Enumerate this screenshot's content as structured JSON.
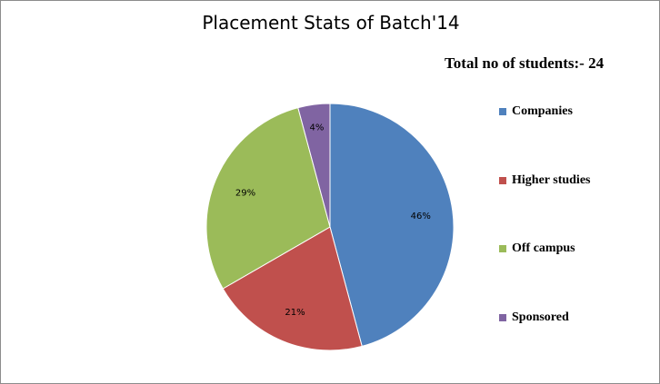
{
  "chart_data": {
    "type": "pie",
    "title": "Placement Stats of Batch'14",
    "annotation": "Total no of students:- 24",
    "legend_position": "right",
    "categories": [
      "Companies",
      "Higher studies",
      "Off campus",
      "Sponsored"
    ],
    "values": [
      11,
      5,
      7,
      1
    ],
    "percent_labels": [
      "46%",
      "21%",
      "29%",
      "4%"
    ],
    "colors": [
      "#4F81BD",
      "#C0504D",
      "#9BBB59",
      "#8064A2"
    ]
  }
}
